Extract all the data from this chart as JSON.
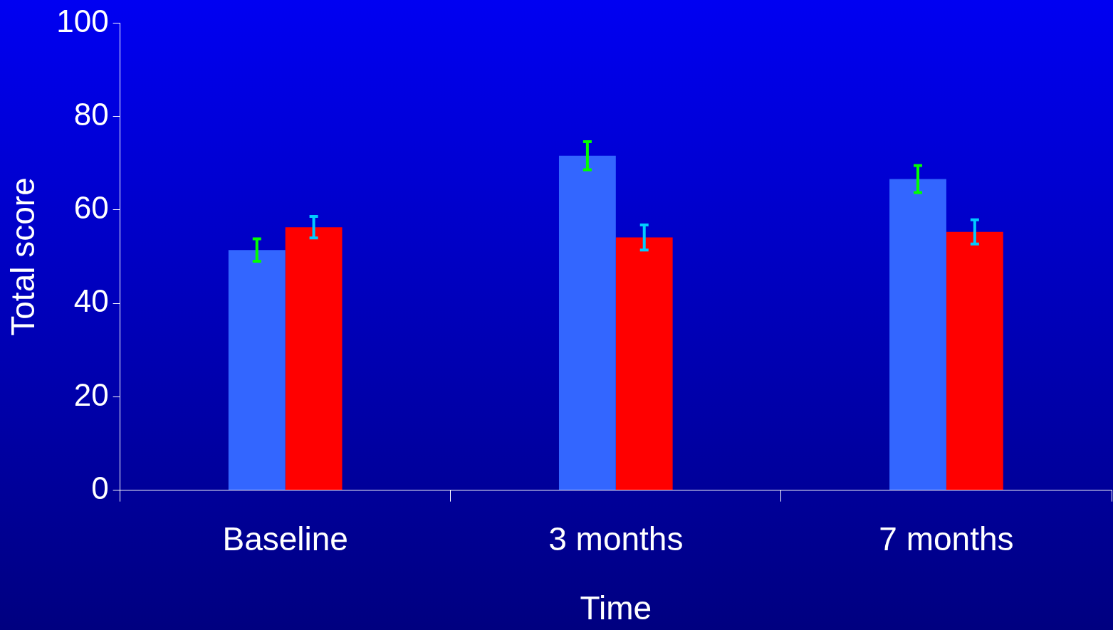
{
  "chart_data": {
    "type": "bar",
    "xlabel": "Time",
    "ylabel": "Total score",
    "categories": [
      "Baseline",
      "3 months",
      "7 months"
    ],
    "series": [
      {
        "color": "#3366ff",
        "values": [
          51.4,
          71.6,
          66.6
        ],
        "errors": [
          2.4,
          3,
          2.9
        ]
      },
      {
        "color": "#ff0000",
        "values": [
          56.3,
          54.1,
          55.3
        ],
        "errors": [
          2.3,
          2.7,
          2.6
        ]
      }
    ],
    "ylim": [
      0,
      100
    ],
    "yticks": [
      0,
      20,
      40,
      60,
      80,
      100
    ],
    "grid": false,
    "legend": false
  }
}
